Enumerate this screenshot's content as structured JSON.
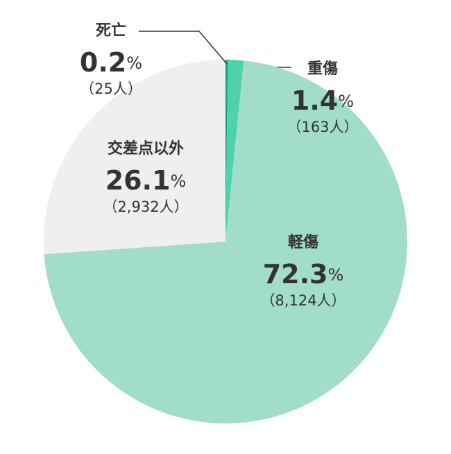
{
  "chart_data": {
    "type": "pie",
    "categories": [
      "死亡",
      "重傷",
      "軽傷",
      "交差点以外"
    ],
    "values": [
      0.2,
      1.4,
      72.3,
      26.1
    ],
    "unit": "%",
    "count_labels": [
      "（25人）",
      "（163人）",
      "（8,124人）",
      "（2,932人）"
    ],
    "colors": [
      "#17a07c",
      "#4fd1ab",
      "#a1ddca",
      "#efefef"
    ]
  }
}
